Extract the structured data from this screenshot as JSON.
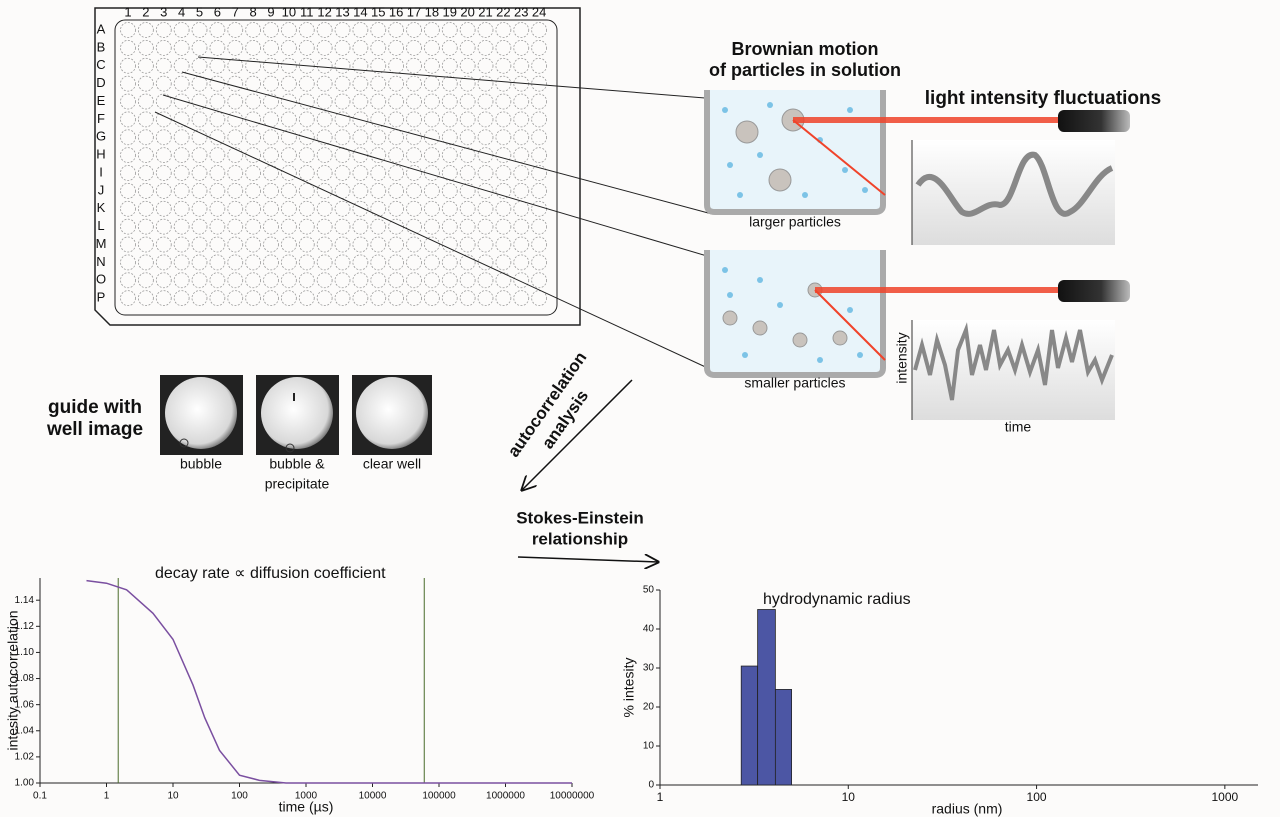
{
  "plate": {
    "columns": [
      "1",
      "2",
      "3",
      "4",
      "5",
      "6",
      "7",
      "8",
      "9",
      "10",
      "11",
      "12",
      "13",
      "14",
      "15",
      "16",
      "17",
      "18",
      "19",
      "20",
      "21",
      "22",
      "23",
      "24"
    ],
    "rows": [
      "A",
      "B",
      "C",
      "D",
      "E",
      "F",
      "G",
      "H",
      "I",
      "J",
      "K",
      "L",
      "M",
      "N",
      "O",
      "P"
    ]
  },
  "brownian_title": [
    "Brownian motion",
    "of particles in solution"
  ],
  "light_label": "light intensity fluctuations",
  "larger_label": "larger particles",
  "smaller_label": "smaller particles",
  "trace_y_label": "intensity",
  "trace_x_label": "time",
  "guide_title": [
    "guide with",
    "well image"
  ],
  "well_images": [
    [
      "bubble"
    ],
    [
      "bubble &",
      "precipitate"
    ],
    [
      "clear well"
    ]
  ],
  "autocorrelation_label": [
    "autocorrelation",
    "analysis"
  ],
  "stokes_label": [
    "Stokes-Einstein",
    "relationship"
  ],
  "chart_data": [
    {
      "type": "line",
      "title": "decay rate ∝ diffusion coefficient",
      "x_label": "time (µs)",
      "y_label": "intesity autocorrelation",
      "x": [
        0.5,
        1,
        2,
        5,
        10,
        20,
        30,
        50,
        100,
        200,
        500,
        1000,
        10000,
        100000,
        1000000,
        10000000
      ],
      "values": [
        1.155,
        1.153,
        1.148,
        1.13,
        1.11,
        1.075,
        1.05,
        1.025,
        1.006,
        1.002,
        1.0,
        1.0,
        1.0,
        1.0,
        1.0,
        1.0
      ],
      "color": "#7a4fa0",
      "vlines": [
        1.5,
        60000
      ],
      "vline_color": "#4a6b2a",
      "log_x": true,
      "xlim": [
        0.1,
        10000000
      ],
      "xticks": [
        0.1,
        1,
        10,
        100,
        1000,
        10000,
        100000,
        1000000,
        10000000
      ],
      "ylim": [
        1,
        1.157
      ],
      "yticks": [
        {
          "value": 1,
          "label": "1.00"
        },
        1.02,
        1.04,
        1.06,
        1.08,
        {
          "value": 1.1,
          "label": "1.10"
        },
        1.12,
        1.14
      ]
    },
    {
      "type": "histogram",
      "title": "hydrodynamic radius",
      "x_label": "radius (nm)",
      "y_label": "% intesity",
      "bins": [
        2.7,
        3.3,
        4.1,
        5.0
      ],
      "values": [
        30.5,
        45,
        24.5
      ],
      "color": "#4c56a4",
      "log_x": true,
      "xlim": [
        1,
        1500
      ],
      "xticks": [
        1,
        10,
        100,
        1000
      ],
      "ylim": [
        0,
        50
      ],
      "yticks": [
        0,
        10,
        20,
        30,
        40,
        50
      ]
    }
  ]
}
